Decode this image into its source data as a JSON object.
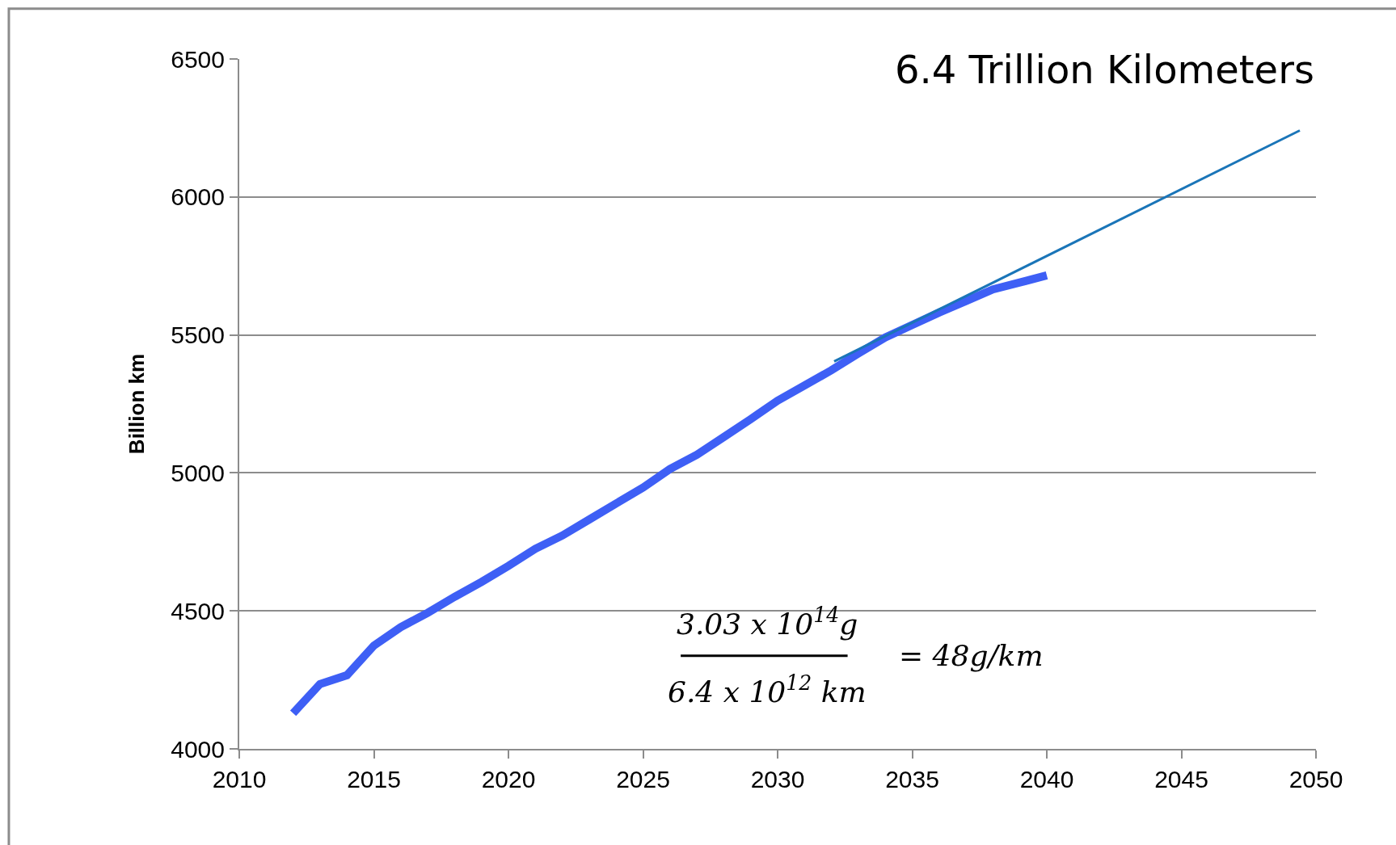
{
  "chart_data": {
    "type": "line",
    "ylabel": "Billion km",
    "annotations": [
      "6.4 Trillion Kilometers",
      "3.03 x 10$^{14}$g",
      "6.4 x 10$^{12}$ km",
      "= 48g/km"
    ],
    "series": [
      {
        "color": "#3e5ff5",
        "x": [
          2012,
          2013,
          2014,
          2015,
          2016,
          2017,
          2018,
          2019,
          2020,
          2021,
          2022,
          2023,
          2024,
          2025,
          2026,
          2027,
          2028,
          2029,
          2030,
          2031,
          2032,
          2033,
          2034,
          2035,
          2036,
          2037,
          2038,
          2039,
          2040
        ],
        "values": [
          4129,
          4235,
          4267,
          4374,
          4441,
          4493,
          4551,
          4605,
          4663,
          4725,
          4773,
          4831,
          4889,
          4947,
          5014,
          5066,
          5130,
          5195,
          5262,
          5317,
          5372,
          5433,
          5491,
          5536,
          5581,
          5623,
          5665,
          5690,
          5716
        ]
      },
      {
        "color": "#1a75b8",
        "x": [
          2032.1,
          2049.4
        ],
        "values": [
          5404,
          6241
        ]
      }
    ],
    "xlim": [
      2010,
      2050
    ],
    "xticks": [
      2010,
      2015,
      2020,
      2025,
      2030,
      2035,
      2040,
      2045,
      2050
    ],
    "ylim": [
      4000,
      6500
    ],
    "yticks": [
      4000,
      4500,
      5000,
      5500,
      6000,
      6500
    ],
    "grid": "y",
    "marker": "none",
    "line_style": "solid"
  }
}
